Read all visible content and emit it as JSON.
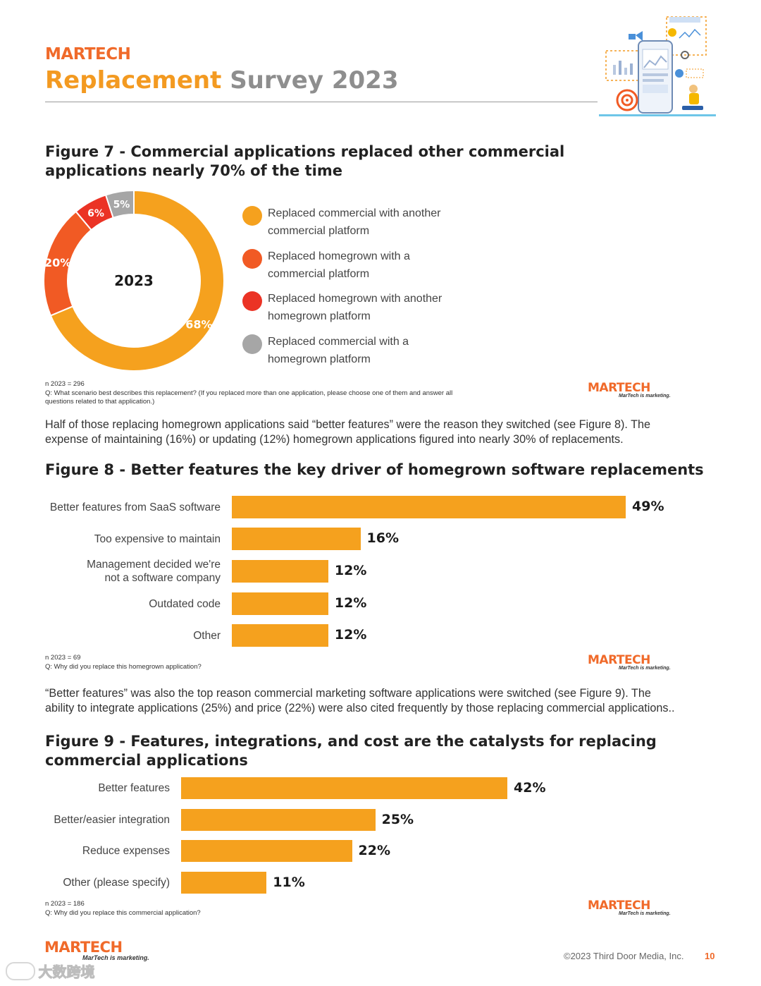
{
  "header": {
    "logo": "MARTECH",
    "title_part1": "Replacement",
    "title_part2": "Survey 2023"
  },
  "figure7": {
    "title_line1": "Figure 7 - Commercial applications replaced other commercial",
    "title_line2": "applications nearly 70% of the time",
    "n_note": "n 2023 = 296",
    "q_note_line1": "Q: What scenario best describes this replacement? (If you replaced more than one application, please choose one of them and answer all",
    "q_note_line2": "questions related to that application.)"
  },
  "paragraph1": {
    "line1": "Half of those replacing homegrown applications said “better features” were the reason they switched (see Figure 8). The",
    "line2": "expense of maintaining (16%) or updating (12%) homegrown applications figured into nearly 30% of replacements."
  },
  "figure8": {
    "title": "Figure 8 - Better features the key driver of homegrown software replacements",
    "n_note": "n 2023 = 69",
    "q_note": "Q: Why did you replace this homegrown application?"
  },
  "paragraph2": {
    "line1": "“Better features” was also the top reason commercial marketing software applications were switched (see Figure 9). The",
    "line2": "ability to integrate applications (25%) and price (22%) were also cited frequently by those replacing commercial applications.."
  },
  "figure9": {
    "title_line1": "Figure 9 - Features, integrations, and cost are the catalysts for replacing",
    "title_line2": "commercial applications",
    "n_note": "n 2023 = 186",
    "q_note": "Q: Why did you replace this commercial application?"
  },
  "brand": {
    "logo": "MARTECH",
    "tagline": "MarTech is marketing."
  },
  "footer": {
    "copyright": "©2023 Third Door Media, Inc.",
    "page_number": "10",
    "watermark": "大数跨境"
  },
  "colors": {
    "orange": "#f5a11e",
    "orange_red": "#f15a24",
    "red": "#eb3325",
    "gray": "#a6a6a6"
  },
  "chart_data": [
    {
      "type": "pie",
      "title": "Figure 7 - Commercial applications replaced other commercial applications nearly 70% of the time",
      "center_label": "2023",
      "categories": [
        "Replaced commercial with another commercial platform",
        "Replaced homegrown with a commercial platform",
        "Replaced homegrown with another homegrown platform",
        "Replaced commercial with a homegrown platform"
      ],
      "legend_lines": [
        [
          "Replaced commercial with another",
          "commercial platform"
        ],
        [
          "Replaced homegrown with a",
          "commercial platform"
        ],
        [
          "Replaced homegrown with another",
          "homegrown platform"
        ],
        [
          "Replaced commercial with a",
          "homegrown platform"
        ]
      ],
      "values": [
        68,
        20,
        6,
        5
      ],
      "labels": [
        "68%",
        "20%",
        "6%",
        "5%"
      ],
      "colors": [
        "#f5a11e",
        "#f15a24",
        "#eb3325",
        "#a6a6a6"
      ],
      "legend": "right"
    },
    {
      "type": "bar",
      "orientation": "horizontal",
      "title": "Figure 8 - Better features the key driver of homegrown software replacements",
      "categories": [
        "Better features from SaaS software",
        "Too expensive to maintain",
        "Management decided we're not a software company",
        "Outdated code",
        "Other"
      ],
      "category_lines": [
        [
          "Better features from SaaS software"
        ],
        [
          "Too expensive to maintain"
        ],
        [
          "Management decided we're",
          "not a software company"
        ],
        [
          "Outdated code"
        ],
        [
          "Other"
        ]
      ],
      "values": [
        49,
        16,
        12,
        12,
        12
      ],
      "labels": [
        "49%",
        "16%",
        "12%",
        "12%",
        "12%"
      ],
      "xlim": [
        0,
        49
      ]
    },
    {
      "type": "bar",
      "orientation": "horizontal",
      "title": "Figure 9 - Features, integrations, and cost are the catalysts for replacing commercial applications",
      "categories": [
        "Better features",
        "Better/easier integration",
        "Reduce expenses",
        "Other (please specify)"
      ],
      "category_lines": [
        [
          "Better features"
        ],
        [
          "Better/easier integration"
        ],
        [
          "Reduce expenses"
        ],
        [
          "Other (please specify)"
        ]
      ],
      "values": [
        42,
        25,
        22,
        11
      ],
      "labels": [
        "42%",
        "25%",
        "22%",
        "11%"
      ],
      "xlim": [
        0,
        42
      ]
    }
  ]
}
